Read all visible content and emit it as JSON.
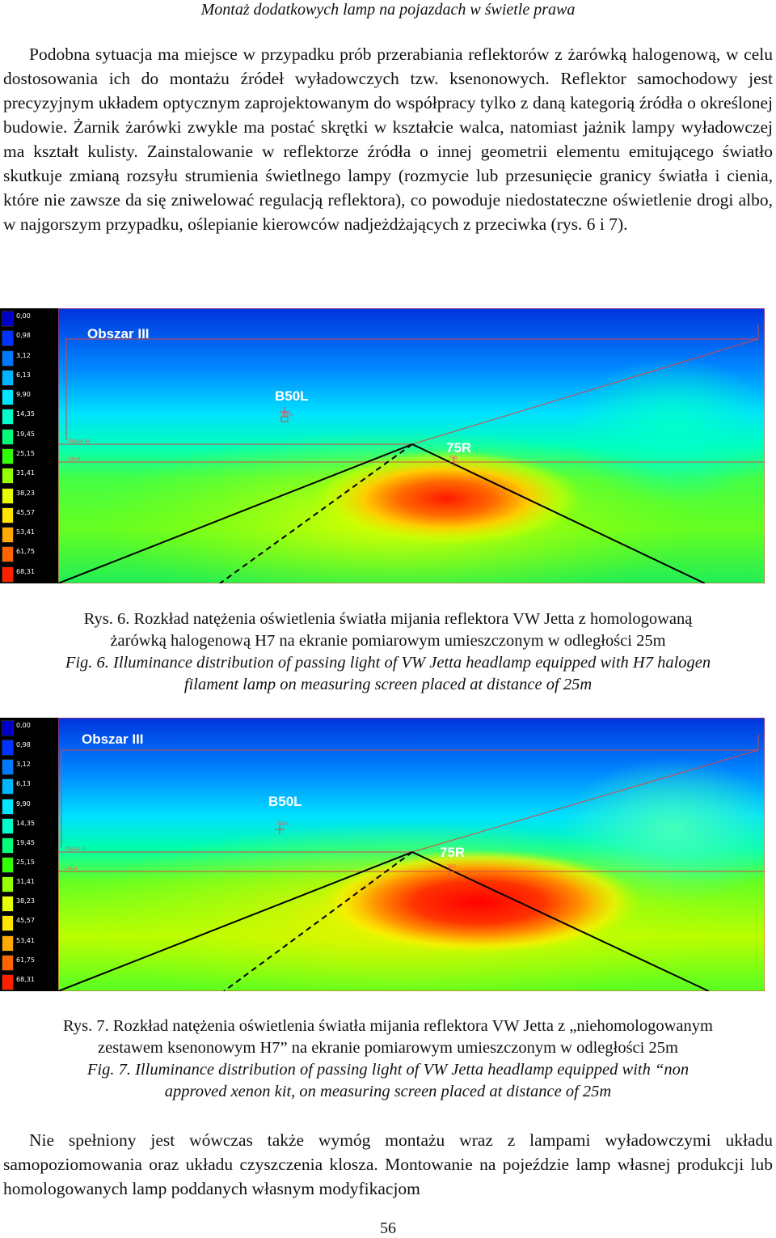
{
  "header": "Montaż dodatkowych lamp na pojazdach w świetle prawa",
  "paragraph1": "Podobna sytuacja ma miejsce w przypadku prób przerabiania reflektorów z żarówką halogenową, w celu dostosowania ich do montażu źródeł wyładowczych tzw. ksenonowych. Reflektor samochodowy jest precyzyjnym układem optycznym zaprojektowanym do współpracy tylko z daną kategorią źródła o określonej budowie. Żarnik żarówki zwykle ma postać skrętki w kształcie walca, natomiast jażnik lampy wyładowczej ma kształt kulisty. Zainstalowanie w reflektorze źródła o innej geometrii elementu emitującego światło skutkuje zmianą rozsyłu strumienia świetlnego lampy (rozmycie lub przesunięcie granicy światła i cienia, które nie zawsze da się zniwelować regulacją reflektora), co powoduje niedostateczne oświetlenie drogi albo, w najgorszym przypadku, oślepianie kierowców nadjeżdżających z przeciwka (rys. 6 i 7).",
  "legend": {
    "values": [
      "0,00",
      "0,98",
      "3,12",
      "6,13",
      "9,90",
      "14,35",
      "19,45",
      "25,15",
      "31,41",
      "38,23",
      "45,57",
      "53,41",
      "61,75",
      "68,31"
    ],
    "colors": [
      "#0000c8",
      "#0032ff",
      "#0078ff",
      "#00b4ff",
      "#00e6ff",
      "#00ffc8",
      "#00ff78",
      "#32ff00",
      "#96ff00",
      "#e6ff00",
      "#ffe600",
      "#ffaa00",
      "#ff6400",
      "#ff1e00"
    ]
  },
  "figure6": {
    "zone_label": "Obszar III",
    "b50l_label": "B50L",
    "r75_label": "75R",
    "small_obszar": "Obszar III",
    "small_linia": "Linia1",
    "small_b50l": "B50L",
    "small_75r": "75R",
    "caption_pl_1": "Rys. 6. Rozkład natężenia oświetlenia światła mijania reflektora VW Jetta z homologowaną",
    "caption_pl_2": "żarówką halogenową H7 na ekranie pomiarowym umieszczonym w odległości 25m",
    "caption_en_1": "Fig. 6. Illuminance distribution of passing light of VW Jetta headlamp equipped with H7 halogen",
    "caption_en_2": "filament lamp on measuring screen placed at distance of 25m"
  },
  "figure7": {
    "zone_label": "Obszar III",
    "b50l_label": "B50L",
    "r75_label": "75R",
    "small_obszar": "Obszar III",
    "small_linia": "Linia1",
    "small_b50l": "B50L",
    "small_75r": "75R",
    "caption_pl_1": "Rys. 7. Rozkład natężenia oświetlenia światła mijania reflektora VW Jetta z „niehomologowanym",
    "caption_pl_2": "zestawem ksenonowym H7” na ekranie pomiarowym umieszczonym w odległości 25m",
    "caption_en_1": "Fig. 7. Illuminance distribution of passing light of VW Jetta headlamp equipped with “non",
    "caption_en_2": "approved xenon kit, on measuring screen placed at distance of 25m"
  },
  "paragraph2": "Nie spełniony jest wówczas także wymóg montażu wraz z lampami wyładowczymi układu samopoziomowania oraz układu czyszczenia klosza. Montowanie na pojeździe lamp własnej produkcji lub homologowanych lamp poddanych własnym modyfikacjom",
  "page_number": "56"
}
